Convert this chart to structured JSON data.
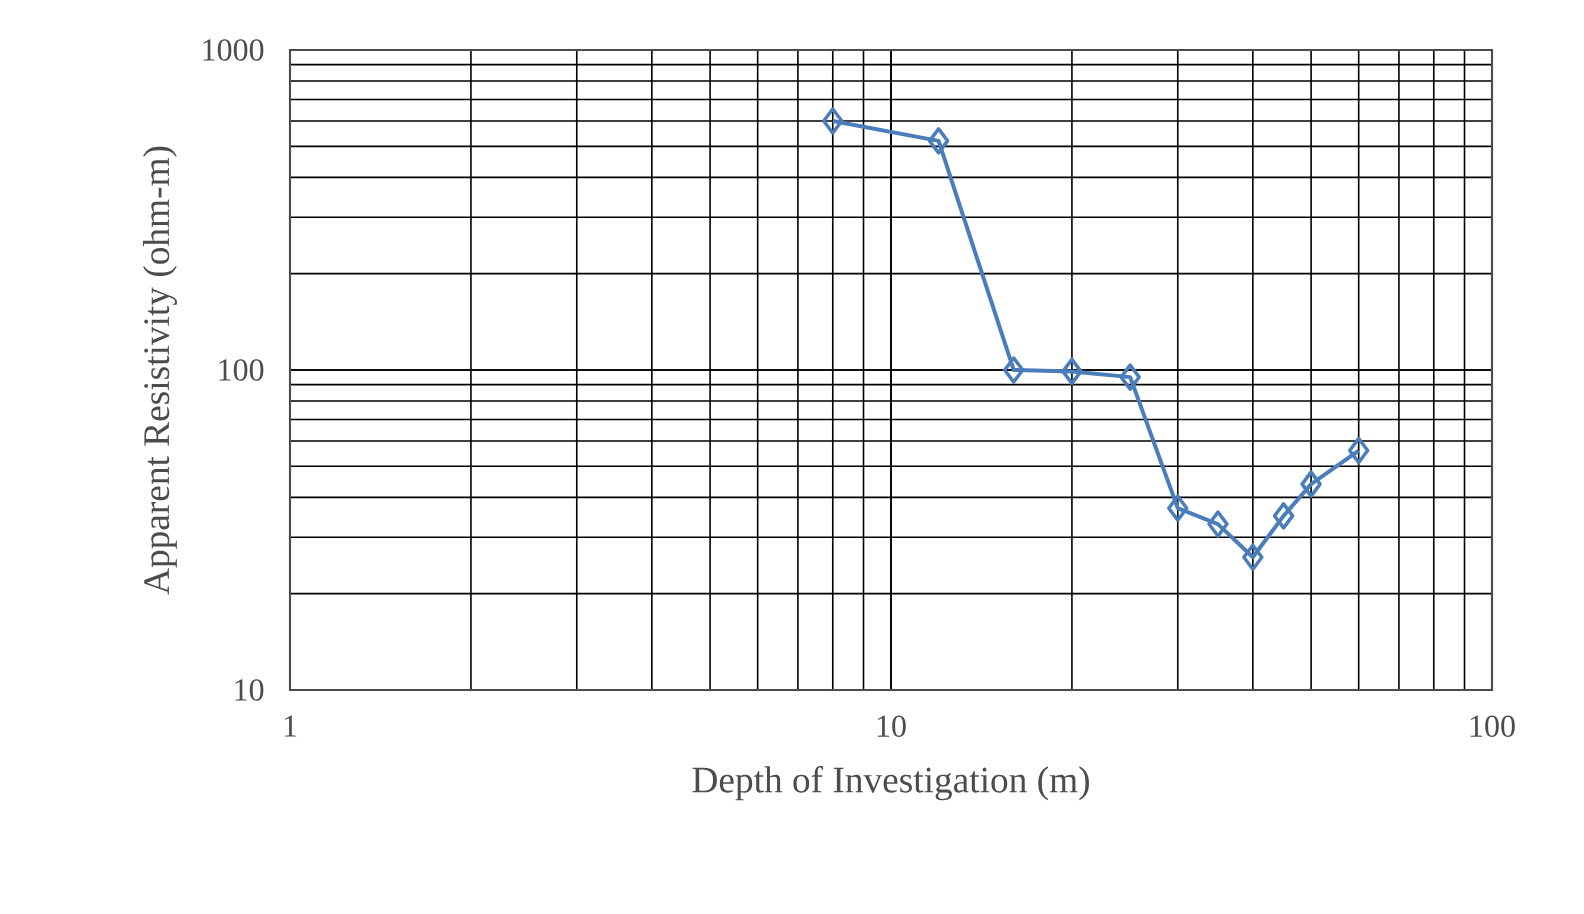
{
  "chart_data": {
    "type": "line",
    "xlabel": "Depth of Investigation (m)",
    "ylabel": "Apparent  Resistivity (ohm-m)",
    "x": [
      8,
      12,
      16,
      20,
      25,
      30,
      35,
      40,
      45,
      50,
      60
    ],
    "series": [
      {
        "color": "#4a7ebb",
        "values": [
          600,
          520,
          100,
          99,
          95,
          37,
          33,
          26,
          35,
          44,
          56
        ]
      }
    ],
    "log": "xy",
    "grid": true,
    "marker": "diamond",
    "line_style": "solid",
    "xlim": [
      1,
      100
    ],
    "ylim": [
      10,
      1000
    ],
    "xticks": [
      1,
      10,
      100
    ],
    "yticks": [
      10,
      100,
      1000
    ]
  }
}
